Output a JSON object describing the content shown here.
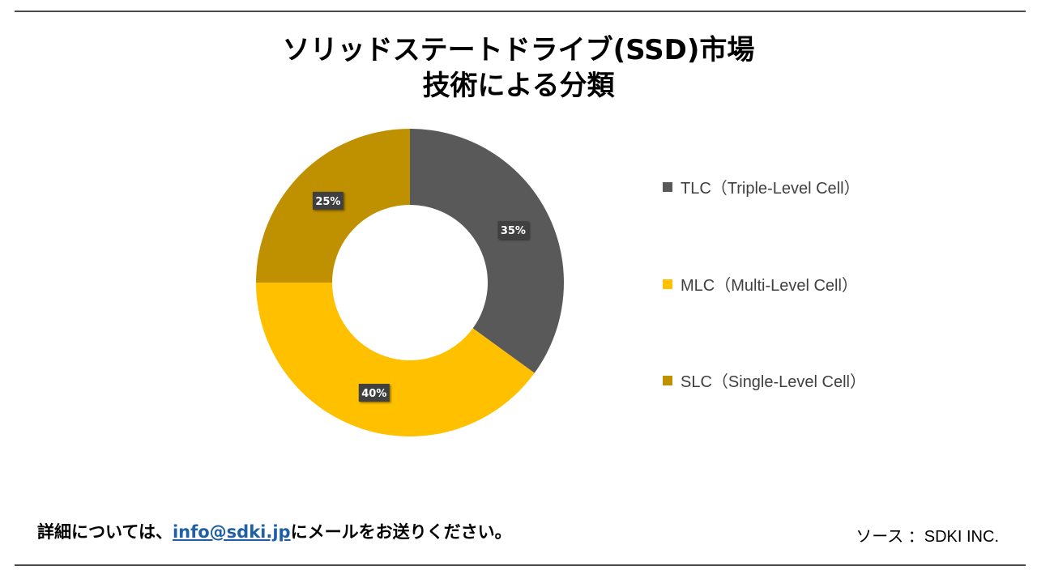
{
  "title": {
    "line1": "ソリッドステートドライブ(SSD)市場",
    "line2": "技術による分類"
  },
  "chart_data": {
    "type": "pie",
    "style": "donut",
    "series": [
      {
        "name": "TLC（Triple-Level Cell）",
        "value": 35,
        "label": "35%",
        "color": "#595959"
      },
      {
        "name": "MLC（Multi-Level Cell）",
        "value": 40,
        "label": "40%",
        "color": "#FFC000"
      },
      {
        "name": "SLC（Single-Level Cell）",
        "value": 25,
        "label": "25%",
        "color": "#BF9000"
      }
    ],
    "legend_position": "right"
  },
  "footer": {
    "contact_prefix": "詳細については、",
    "contact_email": "info@sdki.jp",
    "contact_suffix": "にメールをお送りください。",
    "source": "ソース ：SDKI INC."
  }
}
